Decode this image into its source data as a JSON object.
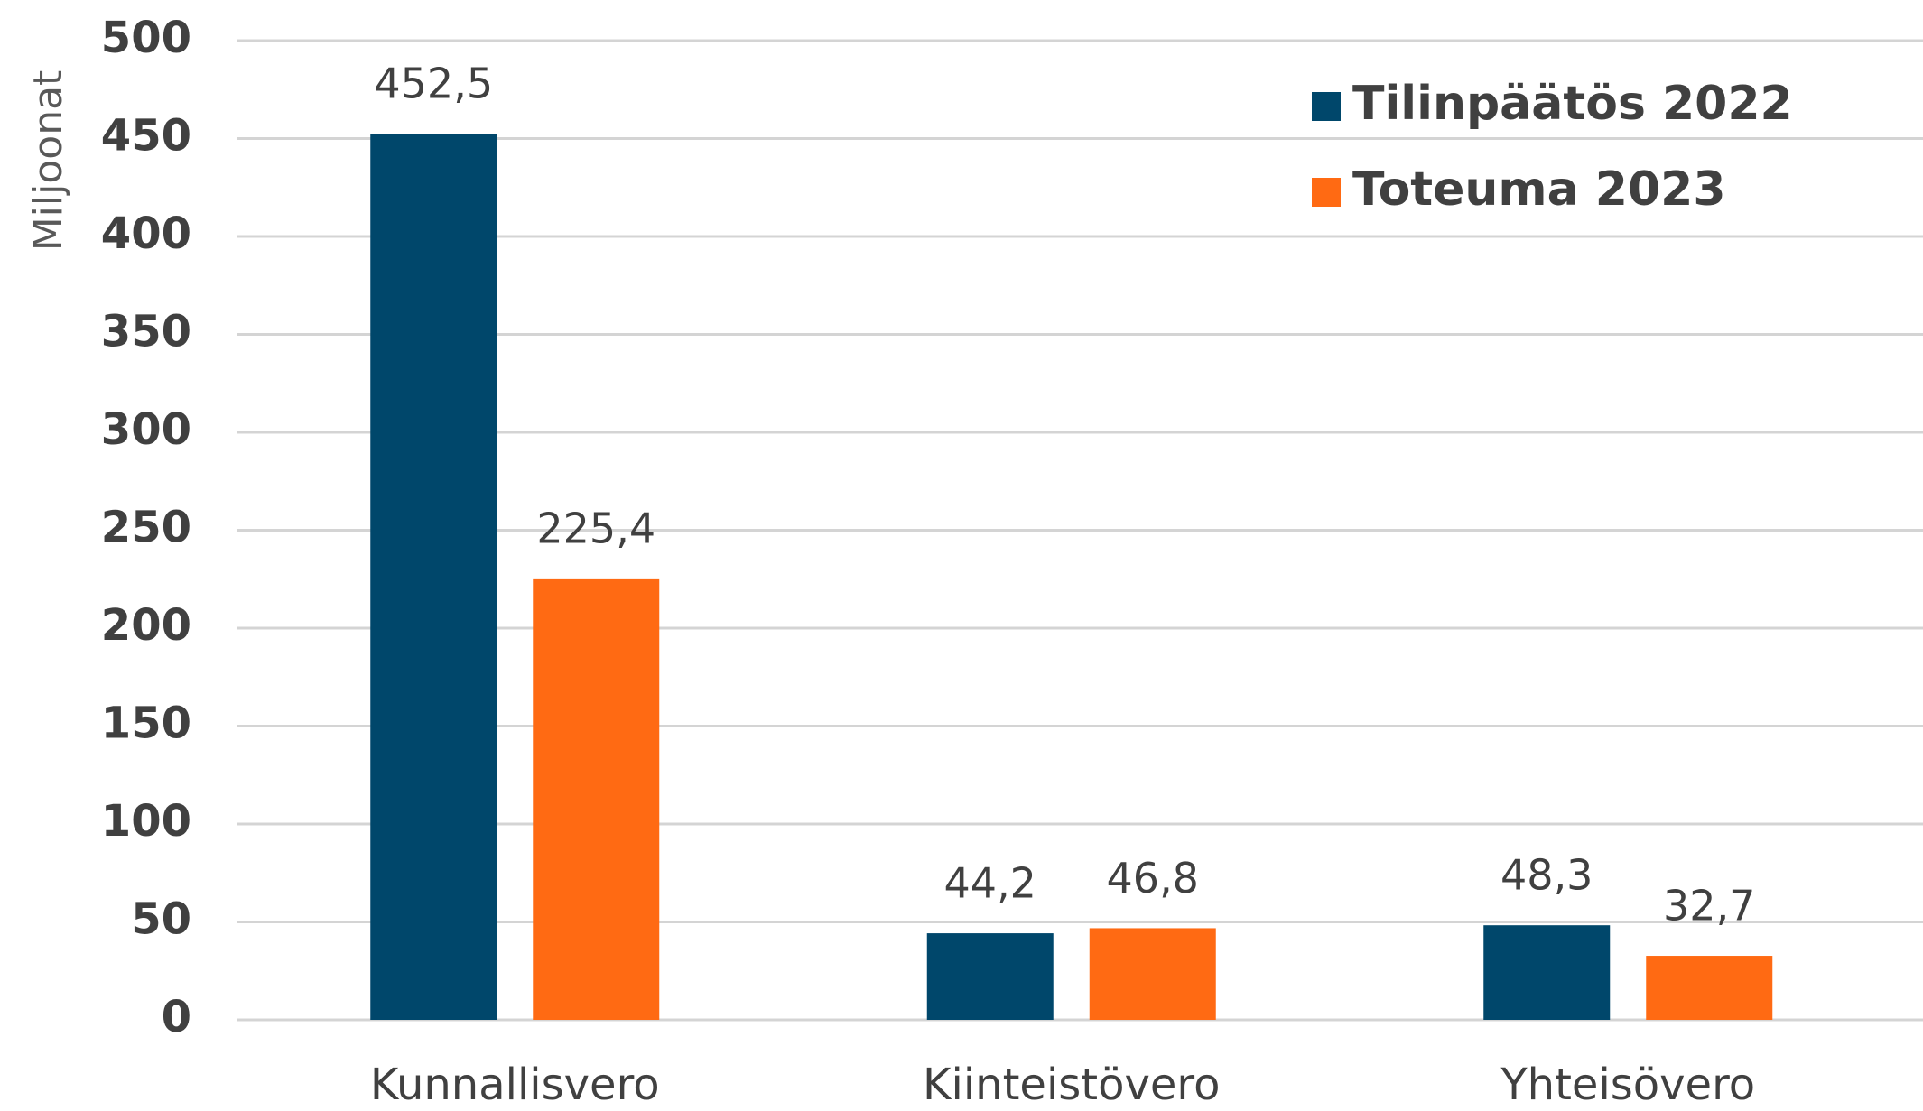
{
  "chart_data": {
    "type": "bar",
    "y_label": "Miljoonat",
    "categories": [
      "Kunnallisvero",
      "Kiinteistövero",
      "Yhteisövero"
    ],
    "series": [
      {
        "name": "Tilinpäätös 2022",
        "color": "#00476b",
        "values": [
          452.5,
          44.2,
          48.3
        ],
        "value_labels": [
          "452,5",
          "44,2",
          "48,3"
        ]
      },
      {
        "name": "Toteuma 2023",
        "color": "#ff6a13",
        "values": [
          225.4,
          46.8,
          32.7
        ],
        "value_labels": [
          "225,4",
          "46,8",
          "32,7"
        ]
      }
    ],
    "ylim": [
      0,
      500
    ],
    "yticks": [
      0,
      50,
      100,
      150,
      200,
      250,
      300,
      350,
      400,
      450,
      500
    ],
    "grid": true,
    "legend": "top-right"
  }
}
